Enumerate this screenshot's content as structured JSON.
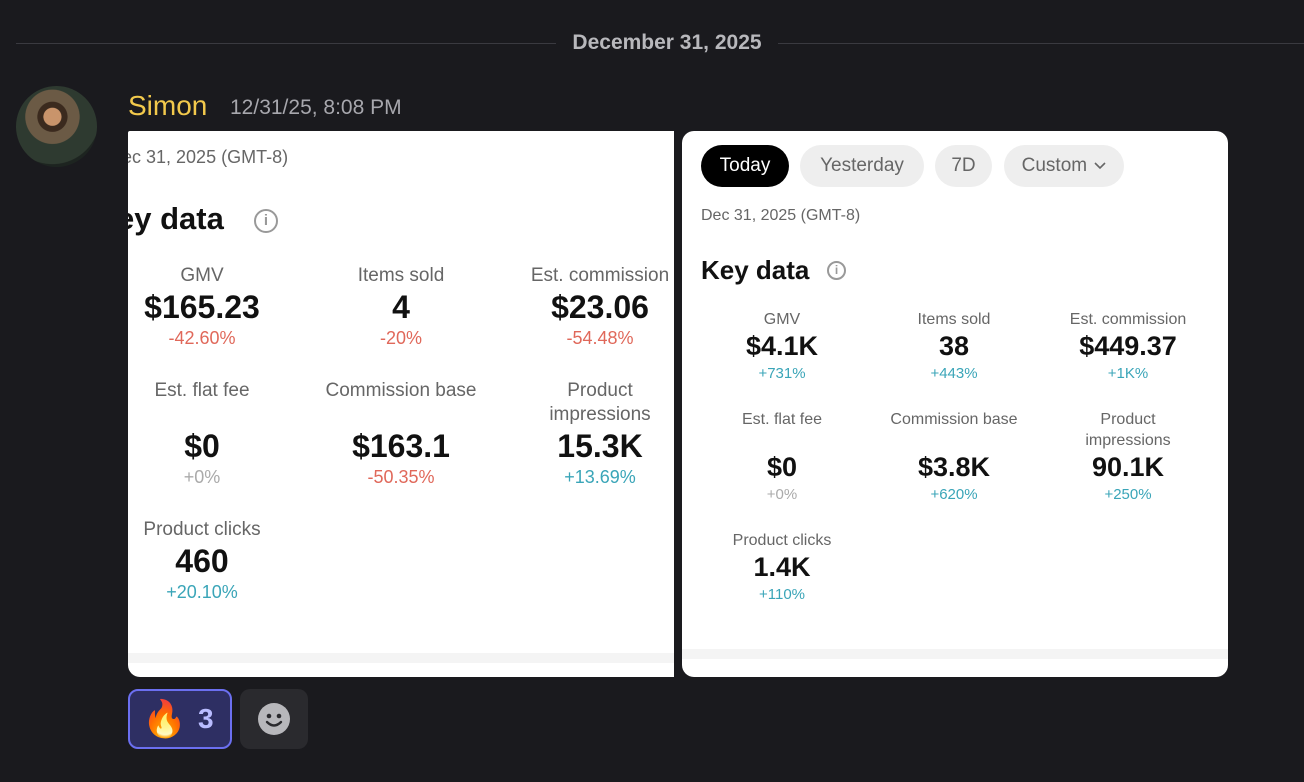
{
  "date_divider": "December 31, 2025",
  "message": {
    "author": "Simon",
    "timestamp": "12/31/25, 8:08 PM"
  },
  "card_left": {
    "date": "ec 31, 2025 (GMT-8)",
    "title": "ey data",
    "metrics": [
      {
        "label": "GMV",
        "value": "$165.23",
        "change": "-42.60%",
        "trend": "negative"
      },
      {
        "label": "Items sold",
        "value": "4",
        "change": "-20%",
        "trend": "negative"
      },
      {
        "label": "Est. commission",
        "value": "$23.06",
        "change": "-54.48%",
        "trend": "negative"
      },
      {
        "label": "Est. flat fee",
        "value": "$0",
        "change": "+0%",
        "trend": "neutral"
      },
      {
        "label": "Commission base",
        "value": "$163.1",
        "change": "-50.35%",
        "trend": "negative"
      },
      {
        "label_line1": "Product",
        "label_line2": "impressions",
        "value": "15.3K",
        "change": "+13.69%",
        "trend": "positive"
      },
      {
        "label": "Product clicks",
        "value": "460",
        "change": "+20.10%",
        "trend": "positive"
      }
    ]
  },
  "card_right": {
    "tabs": [
      {
        "label": "Today",
        "active": true
      },
      {
        "label": "Yesterday",
        "active": false
      },
      {
        "label": "7D",
        "active": false
      },
      {
        "label": "Custom",
        "active": false
      }
    ],
    "date": "Dec 31, 2025 (GMT-8)",
    "title": "Key data",
    "metrics": [
      {
        "label": "GMV",
        "value": "$4.1K",
        "change": "+731%",
        "trend": "positive"
      },
      {
        "label": "Items sold",
        "value": "38",
        "change": "+443%",
        "trend": "positive"
      },
      {
        "label": "Est. commission",
        "value": "$449.37",
        "change": "+1K%",
        "trend": "positive"
      },
      {
        "label": "Est. flat fee",
        "value": "$0",
        "change": "+0%",
        "trend": "neutral"
      },
      {
        "label": "Commission base",
        "value": "$3.8K",
        "change": "+620%",
        "trend": "positive"
      },
      {
        "label_line1": "Product",
        "label_line2": "impressions",
        "value": "90.1K",
        "change": "+250%",
        "trend": "positive"
      },
      {
        "label": "Product clicks",
        "value": "1.4K",
        "change": "+110%",
        "trend": "positive"
      }
    ]
  },
  "reactions": [
    {
      "emoji": "🔥",
      "count": "3",
      "selected": true
    }
  ],
  "info_icon_glyph": "i",
  "colors": {
    "author": "#f2c94c",
    "negative": "#e0685a",
    "positive": "#3aa5b8",
    "reaction_border": "#6b6ff0"
  }
}
